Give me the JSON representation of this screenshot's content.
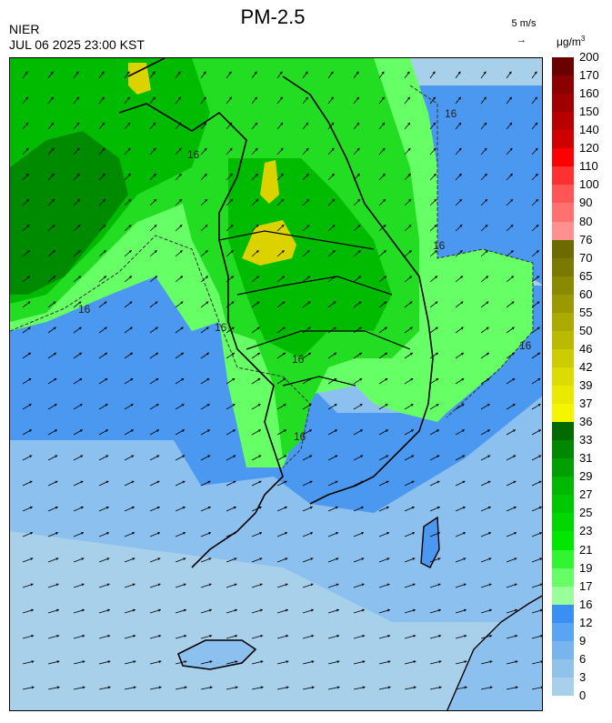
{
  "header": {
    "title": "PM-2.5",
    "organization": "NIER",
    "timestamp": "JUL 06 2025 23:00 KST",
    "wind_reference": "5 m/s",
    "unit": "μg/m",
    "unit_exponent": "3"
  },
  "legend": {
    "labels": [
      "200",
      "170",
      "160",
      "150",
      "140",
      "120",
      "110",
      "100",
      "90",
      "80",
      "76",
      "70",
      "65",
      "60",
      "55",
      "50",
      "46",
      "42",
      "39",
      "37",
      "36",
      "33",
      "31",
      "29",
      "27",
      "25",
      "23",
      "21",
      "19",
      "17",
      "16",
      "12",
      "9",
      "6",
      "3",
      "0"
    ],
    "colors": [
      "#6b0000",
      "#8b0000",
      "#a00000",
      "#b80000",
      "#d00000",
      "#ff0000",
      "#ff3030",
      "#ff5555",
      "#ff7070",
      "#ff9090",
      "#6b6b00",
      "#7a7a00",
      "#8a8a00",
      "#9a9a00",
      "#aaaa00",
      "#baba00",
      "#cccc00",
      "#dcdc00",
      "#eaea00",
      "#f5f500",
      "#006b00",
      "#008800",
      "#00a000",
      "#00b800",
      "#00c800",
      "#00d800",
      "#00e800",
      "#30f530",
      "#66ff66",
      "#99ff99",
      "#3a8ff5",
      "#5aa4f5",
      "#78b4ee",
      "#90c2ea",
      "#a8d0ea"
    ]
  },
  "map": {
    "region": "Korean Peninsula",
    "contour_labels": [
      "16",
      "16",
      "16",
      "16",
      "16",
      "16",
      "16",
      "16"
    ],
    "colors": {
      "ocean_low": "#a8d0ea",
      "ocean_mid": "#8cc0ee",
      "blue_band": "#4a98f0",
      "light_green": "#66ff66",
      "green": "#22dd22",
      "mid_green": "#00bb00",
      "dark_green": "#008a00",
      "yellow": "#dcd200"
    }
  }
}
